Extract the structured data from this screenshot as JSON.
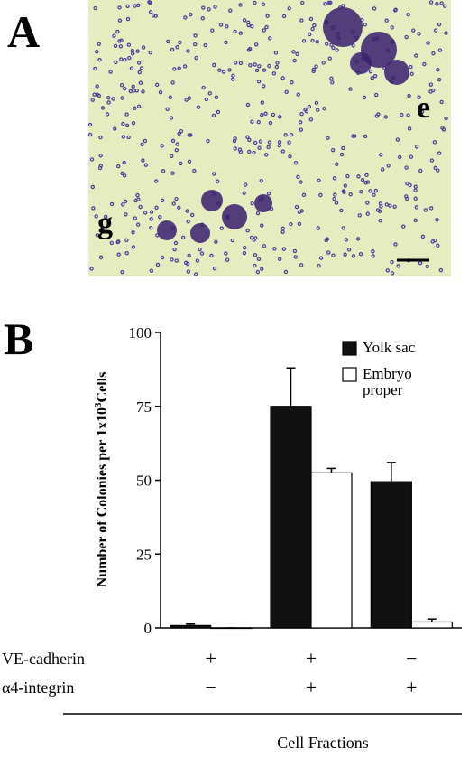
{
  "panel_labels": [
    "A",
    "B"
  ],
  "micrograph": {
    "labels": [
      "e",
      "g"
    ]
  },
  "chart_data": {
    "type": "bar",
    "y_label": {
      "text": "Number of Colonies per 1x10",
      "superscript": "3",
      "after": "Cells"
    },
    "x_label": "Cell Fractions",
    "categories": [
      null,
      null,
      null
    ],
    "rows": [
      {
        "label": "VE-cadherin",
        "signs": [
          "+",
          "+",
          "−"
        ]
      },
      {
        "label": "α4-integrin",
        "signs": [
          "−",
          "+",
          "+"
        ]
      }
    ],
    "series": [
      {
        "name": "Yolk sac",
        "color": "#111111",
        "values": [
          0.8,
          75,
          49.5
        ],
        "errors": [
          0.5,
          13,
          6.5
        ]
      },
      {
        "name": "Embryo proper",
        "color": "#ffffff",
        "values": [
          0,
          52.5,
          2
        ],
        "errors": [
          0,
          1.5,
          1
        ]
      }
    ],
    "ylim": [
      0,
      100
    ],
    "yticks": [
      0,
      25,
      50,
      75,
      100
    ],
    "legend": "top-right"
  }
}
